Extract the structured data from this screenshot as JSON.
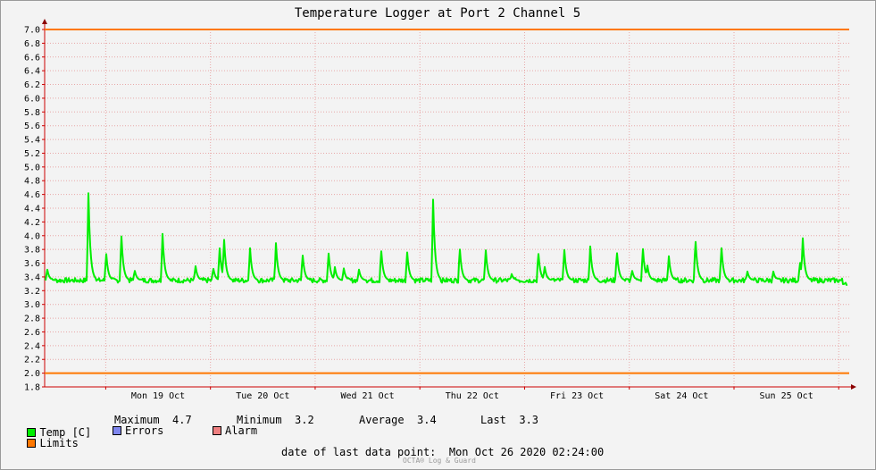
{
  "chart_data": {
    "type": "line",
    "title": "Temperature Logger at Port 2 Channel 5",
    "y_ticks": [
      "7.0",
      "6.8",
      "6.6",
      "6.4",
      "6.2",
      "6.0",
      "5.8",
      "5.6",
      "5.4",
      "5.2",
      "5.0",
      "4.8",
      "4.6",
      "4.4",
      "4.2",
      "4.0",
      "3.8",
      "3.6",
      "3.4",
      "3.2",
      "3.0",
      "2.8",
      "2.6",
      "2.4",
      "2.2",
      "2.0",
      "1.8"
    ],
    "ylim": [
      1.8,
      7.0
    ],
    "x_start": "2020-10-18T10:00",
    "x_end": "2020-10-26T02:24",
    "x_tick_labels": [
      {
        "label": "Mon 19 Oct",
        "center": "2020-10-19T12:00"
      },
      {
        "label": "Tue 20 Oct",
        "center": "2020-10-20T12:00"
      },
      {
        "label": "Wed 21 Oct",
        "center": "2020-10-21T12:00"
      },
      {
        "label": "Thu 22 Oct",
        "center": "2020-10-22T12:00"
      },
      {
        "label": "Fri 23 Oct",
        "center": "2020-10-23T12:00"
      },
      {
        "label": "Sat 24 Oct",
        "center": "2020-10-24T12:00"
      },
      {
        "label": "Sun 25 Oct",
        "center": "2020-10-25T12:00"
      }
    ],
    "grid": true,
    "limits": {
      "upper": 7.0,
      "lower": 2.0
    },
    "series": [
      {
        "name": "Temp [C]",
        "color": "#00ee00",
        "baseline": 3.35,
        "peaks": [
          {
            "t": "2020-10-18T10:30",
            "v": 3.55
          },
          {
            "t": "2020-10-18T20:00",
            "v": 4.7
          },
          {
            "t": "2020-10-19T00:00",
            "v": 3.85
          },
          {
            "t": "2020-10-19T03:30",
            "v": 4.15
          },
          {
            "t": "2020-10-19T06:30",
            "v": 3.55
          },
          {
            "t": "2020-10-19T13:00",
            "v": 4.05
          },
          {
            "t": "2020-10-19T20:30",
            "v": 3.6
          },
          {
            "t": "2020-10-20T00:30",
            "v": 3.6
          },
          {
            "t": "2020-10-20T02:00",
            "v": 3.95
          },
          {
            "t": "2020-10-20T03:00",
            "v": 4.15
          },
          {
            "t": "2020-10-20T09:00",
            "v": 3.9
          },
          {
            "t": "2020-10-20T15:00",
            "v": 3.9
          },
          {
            "t": "2020-10-20T21:00",
            "v": 3.85
          },
          {
            "t": "2020-10-21T03:00",
            "v": 3.82
          },
          {
            "t": "2020-10-21T04:30",
            "v": 3.55
          },
          {
            "t": "2020-10-21T06:30",
            "v": 3.55
          },
          {
            "t": "2020-10-21T10:00",
            "v": 3.52
          },
          {
            "t": "2020-10-21T15:00",
            "v": 3.95
          },
          {
            "t": "2020-10-21T21:00",
            "v": 3.85
          },
          {
            "t": "2020-10-22T03:00",
            "v": 4.6
          },
          {
            "t": "2020-10-22T09:00",
            "v": 4.0
          },
          {
            "t": "2020-10-22T15:00",
            "v": 3.9
          },
          {
            "t": "2020-10-22T21:00",
            "v": 3.45
          },
          {
            "t": "2020-10-23T03:00",
            "v": 3.92
          },
          {
            "t": "2020-10-23T04:30",
            "v": 3.6
          },
          {
            "t": "2020-10-23T09:00",
            "v": 3.92
          },
          {
            "t": "2020-10-23T15:00",
            "v": 3.9
          },
          {
            "t": "2020-10-23T21:00",
            "v": 3.95
          },
          {
            "t": "2020-10-24T00:30",
            "v": 3.55
          },
          {
            "t": "2020-10-24T03:00",
            "v": 3.95
          },
          {
            "t": "2020-10-24T04:00",
            "v": 3.65
          },
          {
            "t": "2020-10-24T09:00",
            "v": 3.75
          },
          {
            "t": "2020-10-24T15:00",
            "v": 4.22
          },
          {
            "t": "2020-10-24T21:00",
            "v": 3.98
          },
          {
            "t": "2020-10-25T03:00",
            "v": 3.5
          },
          {
            "t": "2020-10-25T09:00",
            "v": 3.48
          },
          {
            "t": "2020-10-25T15:00",
            "v": 3.7
          },
          {
            "t": "2020-10-25T15:40",
            "v": 4.1
          }
        ],
        "last": 3.3
      }
    ]
  },
  "legend": {
    "temp_label": "Temp [C]",
    "maximum_label": "Maximum",
    "maximum_value": "4.7",
    "minimum_label": "Minimum",
    "minimum_value": "3.2",
    "average_label": "Average",
    "average_value": "3.4",
    "last_label": "Last",
    "last_value": "3.3",
    "limits_label": "Limits",
    "errors_label": "Errors",
    "alarm_label": "Alarm"
  },
  "colors": {
    "temp": "#00ee00",
    "limits": "#ff7700",
    "errors": "#7f86ee",
    "alarm": "#ee7f80",
    "grid": "#e8a7a7"
  },
  "footer": {
    "last_point": "date of last data point:  Mon Oct 26 2020 02:24:00",
    "watermark": "OCTA® Log & Guard"
  }
}
